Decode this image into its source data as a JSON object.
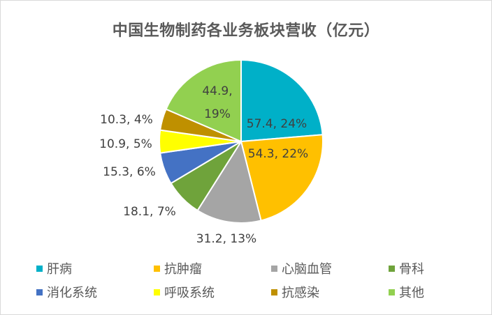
{
  "chart_data": {
    "type": "pie",
    "title": "中国生物制药各业务板块营收（亿元）",
    "series": [
      {
        "name": "肝病",
        "value": 57.4,
        "percent": "24%",
        "color": "#00B0C8",
        "label": "57.4, 24%"
      },
      {
        "name": "抗肿瘤",
        "value": 54.3,
        "percent": "22%",
        "color": "#FFC000",
        "label": "54.3, 22%"
      },
      {
        "name": "心脑血管",
        "value": 31.2,
        "percent": "13%",
        "color": "#A5A5A5",
        "label": "31.2, 13%"
      },
      {
        "name": "骨科",
        "value": 18.1,
        "percent": "7%",
        "color": "#6FA33B",
        "label": "18.1, 7%"
      },
      {
        "name": "消化系统",
        "value": 15.3,
        "percent": "6%",
        "color": "#4472C4",
        "label": "15.3, 6%"
      },
      {
        "name": "呼吸系统",
        "value": 10.9,
        "percent": "5%",
        "color": "#FFFF00",
        "label": "10.9, 5%"
      },
      {
        "name": "抗感染",
        "value": 10.3,
        "percent": "4%",
        "color": "#BF9000",
        "label": "10.3, 4%"
      },
      {
        "name": "其他",
        "value": 44.9,
        "percent": "19%",
        "color": "#92D050",
        "label": "44.9,\n19%"
      }
    ],
    "legend_position": "bottom"
  }
}
